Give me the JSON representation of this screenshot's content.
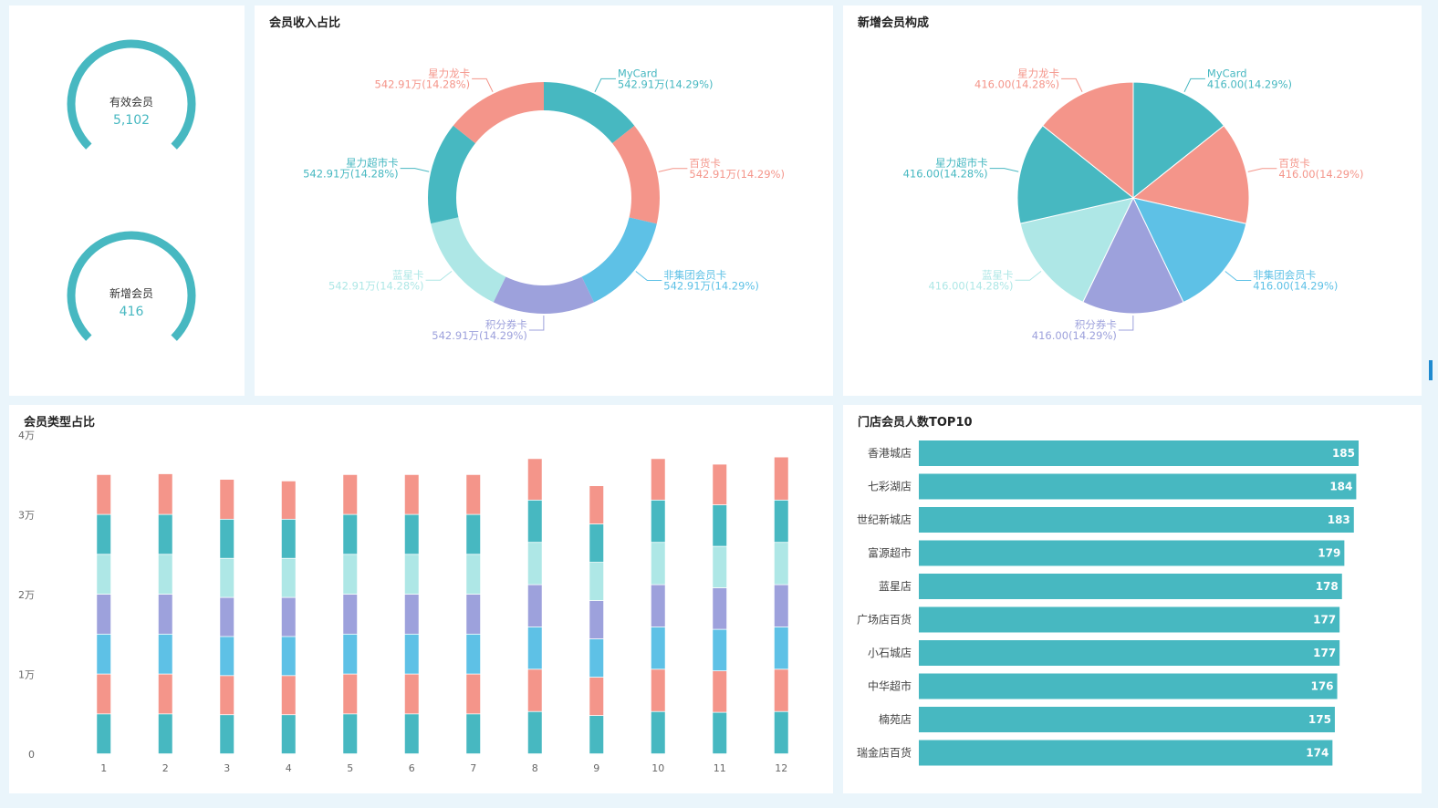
{
  "kpis": [
    {
      "label": "有效会员",
      "value": "5,102",
      "fill": 0.75
    },
    {
      "label": "新增会员",
      "value": "416",
      "fill": 0.75
    }
  ],
  "panels": {
    "donut_title": "会员收入占比",
    "pie_title": "新增会员构成",
    "stack_title": "会员类型占比",
    "top_title": "门店会员人数TOP10"
  },
  "colors": {
    "teal": "#47b8c1",
    "salmon": "#f4958a",
    "sky": "#5ec1e6",
    "lavender": "#9da1dc",
    "mint": "#aee7e6"
  },
  "chart_data": [
    {
      "type": "pie",
      "title": "会员收入占比",
      "donut": true,
      "slices": [
        {
          "name": "MyCard",
          "label": "542.91万(14.29%)",
          "value": 14.29,
          "color": "#47b8c1"
        },
        {
          "name": "百货卡",
          "label": "542.91万(14.29%)",
          "value": 14.29,
          "color": "#f4958a"
        },
        {
          "name": "非集团会员卡",
          "label": "542.91万(14.29%)",
          "value": 14.29,
          "color": "#5ec1e6"
        },
        {
          "name": "积分券卡",
          "label": "542.91万(14.29%)",
          "value": 14.29,
          "color": "#9da1dc"
        },
        {
          "name": "蓝星卡",
          "label": "542.91万(14.28%)",
          "value": 14.28,
          "color": "#aee7e6"
        },
        {
          "name": "星力超市卡",
          "label": "542.91万(14.28%)",
          "value": 14.28,
          "color": "#47b8c1"
        },
        {
          "name": "星力龙卡",
          "label": "542.91万(14.28%)",
          "value": 14.28,
          "color": "#f4958a"
        }
      ]
    },
    {
      "type": "pie",
      "title": "新增会员构成",
      "donut": false,
      "slices": [
        {
          "name": "MyCard",
          "label": "416.00(14.29%)",
          "value": 14.29,
          "color": "#47b8c1"
        },
        {
          "name": "百货卡",
          "label": "416.00(14.29%)",
          "value": 14.29,
          "color": "#f4958a"
        },
        {
          "name": "非集团会员卡",
          "label": "416.00(14.29%)",
          "value": 14.29,
          "color": "#5ec1e6"
        },
        {
          "name": "积分券卡",
          "label": "416.00(14.29%)",
          "value": 14.29,
          "color": "#9da1dc"
        },
        {
          "name": "蓝星卡",
          "label": "416.00(14.28%)",
          "value": 14.28,
          "color": "#aee7e6"
        },
        {
          "name": "星力超市卡",
          "label": "416.00(14.28%)",
          "value": 14.28,
          "color": "#47b8c1"
        },
        {
          "name": "星力龙卡",
          "label": "416.00(14.28%)",
          "value": 14.28,
          "color": "#f4958a"
        }
      ]
    },
    {
      "type": "bar",
      "stacked": true,
      "title": "会员类型占比",
      "categories": [
        "1",
        "2",
        "3",
        "4",
        "5",
        "6",
        "7",
        "8",
        "9",
        "10",
        "11",
        "12"
      ],
      "y_ticks": [
        {
          "value": 0,
          "label": "0"
        },
        {
          "value": 10000,
          "label": "1万"
        },
        {
          "value": 20000,
          "label": "2万"
        },
        {
          "value": 30000,
          "label": "3万"
        },
        {
          "value": 40000,
          "label": "4万"
        }
      ],
      "ylim": [
        0,
        40000
      ],
      "series": [
        {
          "color": "#47b8c1",
          "values": [
            5000,
            5000,
            4900,
            4900,
            5000,
            5000,
            5000,
            5300,
            4800,
            5300,
            5200,
            5300
          ]
        },
        {
          "color": "#f4958a",
          "values": [
            5000,
            5000,
            4900,
            4900,
            5000,
            5000,
            5000,
            5300,
            4800,
            5300,
            5200,
            5300
          ]
        },
        {
          "color": "#5ec1e6",
          "values": [
            5000,
            5000,
            4900,
            4900,
            5000,
            5000,
            5000,
            5300,
            4800,
            5300,
            5200,
            5300
          ]
        },
        {
          "color": "#9da1dc",
          "values": [
            5000,
            5000,
            4900,
            4900,
            5000,
            5000,
            5000,
            5300,
            4800,
            5300,
            5200,
            5300
          ]
        },
        {
          "color": "#aee7e6",
          "values": [
            5000,
            5000,
            4900,
            4900,
            5000,
            5000,
            5000,
            5300,
            4800,
            5300,
            5200,
            5300
          ]
        },
        {
          "color": "#47b8c1",
          "values": [
            5000,
            5000,
            4900,
            4900,
            5000,
            5000,
            5000,
            5300,
            4800,
            5300,
            5200,
            5300
          ]
        },
        {
          "color": "#f4958a",
          "values": [
            5000,
            5100,
            5000,
            4800,
            5000,
            5000,
            5000,
            5200,
            4800,
            5200,
            5100,
            5400
          ]
        }
      ]
    },
    {
      "type": "bar",
      "orientation": "horizontal",
      "title": "门店会员人数TOP10",
      "categories": [
        "香港城店",
        "七彩湖店",
        "世纪新城店",
        "富源超市",
        "蓝星店",
        "广场店百货",
        "小石城店",
        "中华超市",
        "楠苑店",
        "瑞金店百货"
      ],
      "values": [
        185,
        184,
        183,
        179,
        178,
        177,
        177,
        176,
        175,
        174
      ],
      "xlim": [
        0,
        185
      ],
      "color": "#47b8c1"
    }
  ]
}
